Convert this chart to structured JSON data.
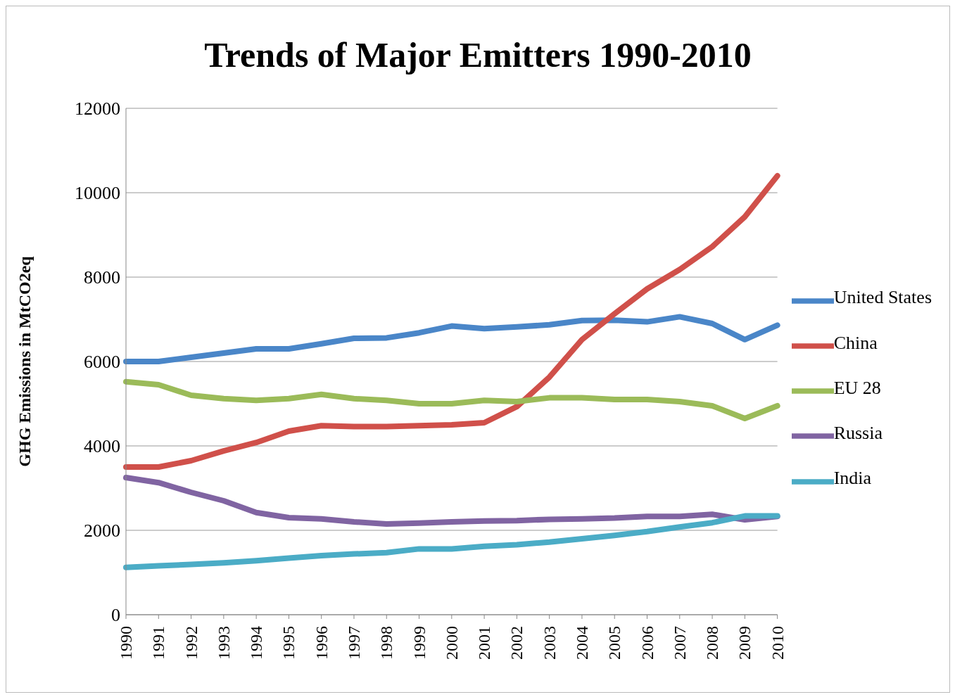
{
  "chart_data": {
    "type": "line",
    "title": "Trends of Major Emitters 1990-2010",
    "ylabel": "GHG Emissions in MtCO2eq",
    "categories": [
      "1990",
      "1991",
      "1992",
      "1993",
      "1994",
      "1995",
      "1996",
      "1997",
      "1998",
      "1999",
      "2000",
      "2001",
      "2002",
      "2003",
      "2004",
      "2005",
      "2006",
      "2007",
      "2008",
      "2009",
      "2010"
    ],
    "series": [
      {
        "name": "United States",
        "color": "#4a86c8",
        "values": [
          6000,
          6000,
          6100,
          6200,
          6300,
          6300,
          6420,
          6550,
          6560,
          6680,
          6840,
          6780,
          6820,
          6870,
          6970,
          6980,
          6940,
          7060,
          6900,
          6520,
          6860
        ]
      },
      {
        "name": "China",
        "color": "#d0504a",
        "values": [
          3500,
          3500,
          3650,
          3880,
          4080,
          4350,
          4480,
          4460,
          4460,
          4480,
          4500,
          4550,
          4930,
          5630,
          6520,
          7130,
          7720,
          8180,
          8720,
          9430,
          10400
        ]
      },
      {
        "name": "EU 28",
        "color": "#9bbb59",
        "values": [
          5520,
          5450,
          5200,
          5120,
          5080,
          5120,
          5220,
          5120,
          5080,
          5000,
          5000,
          5080,
          5050,
          5140,
          5140,
          5100,
          5100,
          5050,
          4950,
          4650,
          4950
        ]
      },
      {
        "name": "Russia",
        "color": "#8064a2",
        "values": [
          3250,
          3130,
          2900,
          2700,
          2420,
          2300,
          2270,
          2200,
          2150,
          2170,
          2200,
          2220,
          2230,
          2260,
          2270,
          2290,
          2330,
          2330,
          2380,
          2250,
          2330
        ]
      },
      {
        "name": "India",
        "color": "#4bacc6",
        "values": [
          1120,
          1160,
          1190,
          1230,
          1280,
          1340,
          1400,
          1440,
          1470,
          1560,
          1560,
          1620,
          1660,
          1720,
          1800,
          1880,
          1970,
          2080,
          2180,
          2340,
          2340
        ]
      }
    ],
    "ylim": [
      0,
      12000
    ],
    "yticks": [
      0,
      2000,
      4000,
      6000,
      8000,
      10000,
      12000
    ],
    "grid": "y",
    "legend": "right",
    "marker": "none",
    "line_style": "solid"
  }
}
